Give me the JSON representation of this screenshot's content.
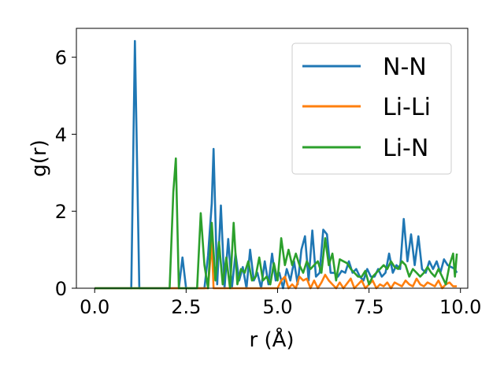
{
  "chart_data": {
    "type": "line",
    "xlabel": "r (Å)",
    "ylabel": "g(r)",
    "xlim": [
      -0.5,
      10.2
    ],
    "ylim": [
      0,
      6.75
    ],
    "xticks": [
      0.0,
      2.5,
      5.0,
      7.5,
      10.0
    ],
    "xtick_labels": [
      "0.0",
      "2.5",
      "5.0",
      "7.5",
      "10.0"
    ],
    "yticks": [
      0,
      2,
      4,
      6
    ],
    "ytick_labels": [
      "0",
      "2",
      "4",
      "6"
    ],
    "grid": false,
    "legend_placement": "top-right",
    "series": [
      {
        "name": "N-N",
        "color": "#1f77b4",
        "points": [
          [
            0,
            0
          ],
          [
            1.0,
            0
          ],
          [
            1.1,
            6.42
          ],
          [
            1.22,
            0
          ],
          [
            2.3,
            0
          ],
          [
            2.4,
            0.8
          ],
          [
            2.5,
            0
          ],
          [
            3.0,
            0
          ],
          [
            3.1,
            0.85
          ],
          [
            3.2,
            2.2
          ],
          [
            3.25,
            3.62
          ],
          [
            3.35,
            0.1
          ],
          [
            3.45,
            2.15
          ],
          [
            3.55,
            0
          ],
          [
            3.65,
            1.28
          ],
          [
            3.75,
            0
          ],
          [
            3.85,
            0.9
          ],
          [
            3.95,
            0.2
          ],
          [
            4.05,
            0.55
          ],
          [
            4.15,
            0
          ],
          [
            4.25,
            1.0
          ],
          [
            4.35,
            0.2
          ],
          [
            4.45,
            0.4
          ],
          [
            4.55,
            0
          ],
          [
            4.65,
            0.7
          ],
          [
            4.75,
            0.1
          ],
          [
            4.85,
            0.9
          ],
          [
            4.95,
            0.2
          ],
          [
            5.05,
            0.4
          ],
          [
            5.15,
            0
          ],
          [
            5.25,
            0.5
          ],
          [
            5.35,
            0.2
          ],
          [
            5.45,
            0.7
          ],
          [
            5.55,
            0.1
          ],
          [
            5.65,
            1.0
          ],
          [
            5.75,
            1.35
          ],
          [
            5.85,
            0.2
          ],
          [
            5.95,
            1.5
          ],
          [
            6.05,
            0.3
          ],
          [
            6.15,
            0.4
          ],
          [
            6.25,
            1.52
          ],
          [
            6.35,
            1.4
          ],
          [
            6.45,
            0.4
          ],
          [
            6.55,
            0.4
          ],
          [
            6.65,
            0.3
          ],
          [
            6.75,
            0.45
          ],
          [
            6.85,
            0.4
          ],
          [
            6.95,
            0.7
          ],
          [
            7.05,
            0.4
          ],
          [
            7.15,
            0.5
          ],
          [
            7.25,
            0.3
          ],
          [
            7.35,
            0.2
          ],
          [
            7.45,
            0.5
          ],
          [
            7.55,
            0.3
          ],
          [
            7.65,
            0.3
          ],
          [
            7.75,
            0.5
          ],
          [
            7.85,
            0.3
          ],
          [
            7.95,
            0.4
          ],
          [
            8.05,
            0.9
          ],
          [
            8.15,
            0.4
          ],
          [
            8.25,
            0.6
          ],
          [
            8.35,
            0.5
          ],
          [
            8.45,
            1.8
          ],
          [
            8.55,
            0.7
          ],
          [
            8.65,
            1.4
          ],
          [
            8.75,
            0.6
          ],
          [
            8.85,
            1.35
          ],
          [
            8.95,
            0.5
          ],
          [
            9.05,
            0.4
          ],
          [
            9.15,
            0.7
          ],
          [
            9.25,
            0.5
          ],
          [
            9.35,
            0.7
          ],
          [
            9.45,
            0.4
          ],
          [
            9.55,
            0.75
          ],
          [
            9.65,
            0.6
          ],
          [
            9.75,
            0.55
          ],
          [
            9.85,
            0.5
          ],
          [
            9.9,
            0.4
          ]
        ]
      },
      {
        "name": "Li-Li",
        "color": "#ff7f0e",
        "points": [
          [
            0,
            0
          ],
          [
            3.1,
            0
          ],
          [
            3.2,
            1.22
          ],
          [
            3.25,
            0
          ],
          [
            5.0,
            0
          ],
          [
            5.1,
            0.2
          ],
          [
            5.2,
            0.3
          ],
          [
            5.3,
            0
          ],
          [
            5.4,
            0.1
          ],
          [
            5.5,
            0
          ],
          [
            5.6,
            0.3
          ],
          [
            5.7,
            0.2
          ],
          [
            5.8,
            0.25
          ],
          [
            5.9,
            0
          ],
          [
            6.0,
            0.2
          ],
          [
            6.1,
            0
          ],
          [
            6.2,
            0.15
          ],
          [
            6.3,
            0.35
          ],
          [
            6.4,
            0.2
          ],
          [
            6.5,
            0.1
          ],
          [
            6.6,
            0
          ],
          [
            6.7,
            0.15
          ],
          [
            6.8,
            0
          ],
          [
            7.0,
            0.25
          ],
          [
            7.1,
            0
          ],
          [
            7.2,
            0.1
          ],
          [
            7.3,
            0.2
          ],
          [
            7.4,
            0
          ],
          [
            7.5,
            0.1
          ],
          [
            7.6,
            0.2
          ],
          [
            7.7,
            0
          ],
          [
            7.8,
            0.1
          ],
          [
            7.9,
            0.05
          ],
          [
            8.0,
            0.15
          ],
          [
            8.1,
            0
          ],
          [
            8.2,
            0.15
          ],
          [
            8.3,
            0.1
          ],
          [
            8.4,
            0.05
          ],
          [
            8.5,
            0.2
          ],
          [
            8.6,
            0.1
          ],
          [
            8.7,
            0.05
          ],
          [
            8.8,
            0.25
          ],
          [
            8.9,
            0.1
          ],
          [
            9.0,
            0.05
          ],
          [
            9.1,
            0.15
          ],
          [
            9.2,
            0.1
          ],
          [
            9.3,
            0.05
          ],
          [
            9.4,
            0.2
          ],
          [
            9.5,
            0
          ],
          [
            9.6,
            0.1
          ],
          [
            9.7,
            0.15
          ],
          [
            9.8,
            0.05
          ],
          [
            9.9,
            0.05
          ]
        ]
      },
      {
        "name": "Li-N",
        "color": "#2ca02c",
        "points": [
          [
            0,
            0
          ],
          [
            2.05,
            0
          ],
          [
            2.15,
            2.5
          ],
          [
            2.22,
            3.37
          ],
          [
            2.3,
            0
          ],
          [
            2.8,
            0
          ],
          [
            2.9,
            1.95
          ],
          [
            3.0,
            0.6
          ],
          [
            3.1,
            0
          ],
          [
            3.2,
            1.7
          ],
          [
            3.3,
            0.2
          ],
          [
            3.4,
            1.2
          ],
          [
            3.5,
            0.1
          ],
          [
            3.6,
            0.8
          ],
          [
            3.7,
            0
          ],
          [
            3.8,
            1.7
          ],
          [
            3.9,
            0.1
          ],
          [
            4.0,
            0.5
          ],
          [
            4.1,
            0.4
          ],
          [
            4.2,
            0.7
          ],
          [
            4.3,
            0.2
          ],
          [
            4.4,
            0.3
          ],
          [
            4.5,
            0.8
          ],
          [
            4.6,
            0.2
          ],
          [
            4.7,
            0.3
          ],
          [
            4.8,
            0.1
          ],
          [
            4.9,
            0.65
          ],
          [
            5.0,
            0.2
          ],
          [
            5.1,
            1.3
          ],
          [
            5.2,
            0.6
          ],
          [
            5.3,
            1.0
          ],
          [
            5.4,
            0.6
          ],
          [
            5.5,
            0.9
          ],
          [
            5.6,
            0.6
          ],
          [
            5.7,
            0.4
          ],
          [
            5.8,
            0.7
          ],
          [
            5.9,
            0.5
          ],
          [
            6.0,
            0.6
          ],
          [
            6.1,
            0.7
          ],
          [
            6.2,
            0.4
          ],
          [
            6.3,
            1.3
          ],
          [
            6.4,
            0.6
          ],
          [
            6.5,
            0.9
          ],
          [
            6.6,
            0.2
          ],
          [
            6.7,
            0.75
          ],
          [
            6.8,
            0.7
          ],
          [
            6.9,
            0.65
          ],
          [
            7.0,
            0.5
          ],
          [
            7.1,
            0.4
          ],
          [
            7.2,
            0.3
          ],
          [
            7.3,
            0.3
          ],
          [
            7.4,
            0.45
          ],
          [
            7.5,
            0.1
          ],
          [
            7.6,
            0.3
          ],
          [
            7.7,
            0.4
          ],
          [
            7.8,
            0.5
          ],
          [
            7.9,
            0.6
          ],
          [
            8.0,
            0.5
          ],
          [
            8.1,
            0.7
          ],
          [
            8.2,
            0.55
          ],
          [
            8.3,
            0.5
          ],
          [
            8.4,
            0.7
          ],
          [
            8.5,
            0.6
          ],
          [
            8.6,
            0.3
          ],
          [
            8.7,
            0.5
          ],
          [
            8.8,
            0.4
          ],
          [
            8.9,
            0.3
          ],
          [
            9.0,
            0.4
          ],
          [
            9.1,
            0.55
          ],
          [
            9.2,
            0.4
          ],
          [
            9.3,
            0.3
          ],
          [
            9.4,
            0.5
          ],
          [
            9.5,
            0.3
          ],
          [
            9.6,
            0.1
          ],
          [
            9.7,
            0.6
          ],
          [
            9.8,
            0.9
          ],
          [
            9.85,
            0.3
          ],
          [
            9.9,
            0.9
          ]
        ]
      }
    ]
  }
}
